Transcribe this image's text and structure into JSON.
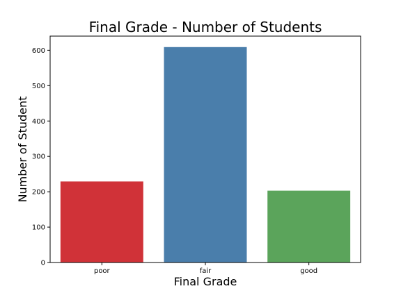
{
  "chart_data": {
    "type": "bar",
    "title": "Final Grade - Number of Students",
    "xlabel": "Final Grade",
    "ylabel": "Number of Student",
    "categories": [
      "poor",
      "fair",
      "good"
    ],
    "values": [
      229,
      609,
      203
    ],
    "colors": [
      "#d03238",
      "#4a7eab",
      "#5ba45b"
    ],
    "ylim": [
      0,
      640
    ],
    "yticks": [
      0,
      100,
      200,
      300,
      400,
      500,
      600
    ],
    "ytick_labels": [
      "0",
      "100",
      "200",
      "300",
      "400",
      "500",
      "600"
    ],
    "grid": false,
    "legend": "none"
  }
}
